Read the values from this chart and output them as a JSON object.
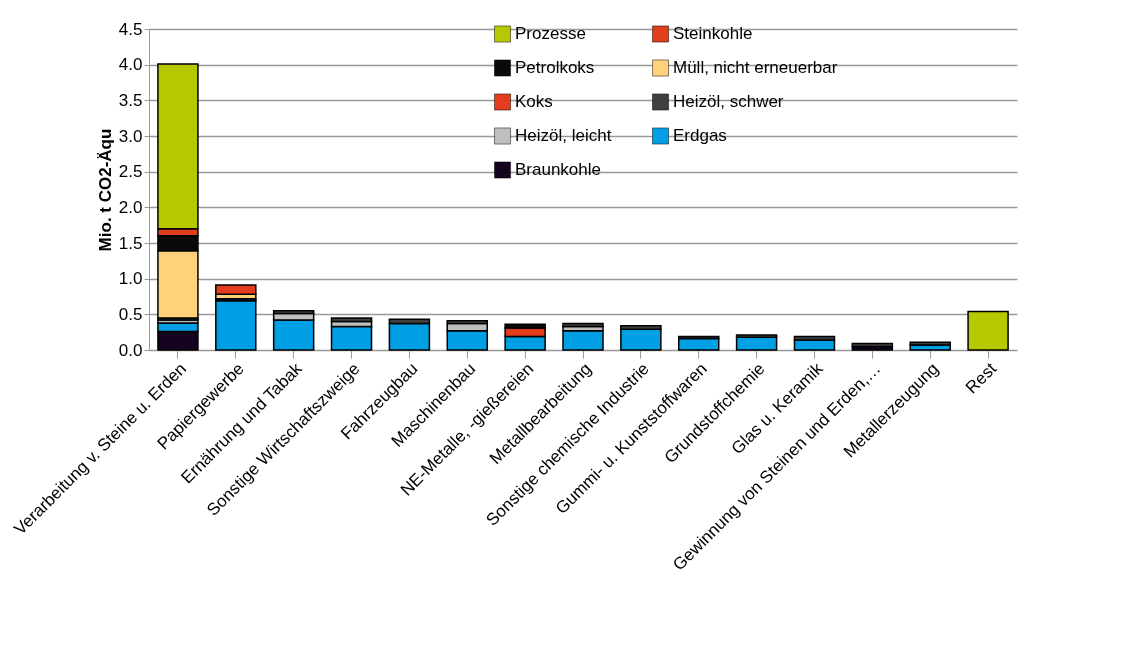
{
  "chart_data": {
    "type": "bar",
    "stacked": true,
    "ylabel": "Mio. t CO2-Äqu",
    "categories": [
      "Verarbeitung v. Steine u. Erden",
      "Papiergewerbe",
      "Ernährung und Tabak",
      "Sonstige Wirtschaftszweige",
      "Fahrzeugbau",
      "Maschinenbau",
      "NE-Metalle, -gießereien",
      "Metallbearbeitung",
      "Sonstige chemische Industrie",
      "Gummi- u. Kunststoffwaren",
      "Grundstoffchemie",
      "Glas u. Keramik",
      "Gewinnung von Steinen und Erden,…",
      "Metallerzeugung",
      "Rest"
    ],
    "series": [
      {
        "name": "Braunkohle",
        "color": "#150420",
        "values": [
          0.26,
          null,
          null,
          null,
          null,
          null,
          null,
          null,
          null,
          null,
          null,
          null,
          0.05,
          null,
          null
        ]
      },
      {
        "name": "Erdgas",
        "color": "#009fe3",
        "values": [
          0.12,
          0.69,
          0.42,
          0.33,
          0.37,
          0.27,
          0.19,
          0.27,
          0.29,
          0.16,
          0.18,
          0.14,
          null,
          0.07,
          null
        ]
      },
      {
        "name": "Heizöl, leicht",
        "color": "#bfbfbf",
        "values": [
          0.04,
          null,
          0.09,
          0.07,
          null,
          0.1,
          null,
          0.06,
          null,
          null,
          null,
          null,
          null,
          null,
          null
        ]
      },
      {
        "name": "Heizöl, schwer",
        "color": "#404040",
        "values": [
          0.03,
          0.03,
          0.04,
          0.05,
          0.06,
          0.04,
          null,
          0.04,
          0.05,
          0.03,
          0.03,
          0.05,
          0.04,
          0.04,
          null
        ]
      },
      {
        "name": "Koks",
        "color": "#e23d1c",
        "values": [
          null,
          null,
          null,
          null,
          null,
          null,
          0.12,
          null,
          null,
          null,
          null,
          null,
          null,
          null,
          null
        ]
      },
      {
        "name": "Müll, nicht erneuerbar",
        "color": "#fdd27a",
        "values": [
          0.94,
          0.06,
          null,
          null,
          null,
          null,
          null,
          null,
          null,
          null,
          null,
          null,
          null,
          null,
          null
        ]
      },
      {
        "name": "Petrolkoks",
        "color": "#0a0a0a",
        "values": [
          0.21,
          null,
          null,
          null,
          null,
          null,
          0.05,
          null,
          null,
          null,
          null,
          null,
          null,
          null,
          null
        ]
      },
      {
        "name": "Steinkohle",
        "color": "#e23d1c",
        "values": [
          0.1,
          0.13,
          null,
          null,
          null,
          null,
          null,
          null,
          null,
          null,
          null,
          null,
          null,
          null,
          null
        ]
      },
      {
        "name": "Prozesse",
        "color": "#b5c800",
        "values": [
          2.31,
          null,
          null,
          null,
          null,
          null,
          null,
          null,
          null,
          null,
          null,
          null,
          null,
          null,
          0.54
        ]
      }
    ],
    "ylim": [
      0,
      4.5
    ],
    "yticks": [
      {
        "value": 0,
        "label": "0.0"
      },
      {
        "value": 0.5,
        "label": "0.5"
      },
      {
        "value": 1,
        "label": "1.0"
      },
      {
        "value": 1.5,
        "label": "1.5"
      },
      {
        "value": 2,
        "label": "2.0"
      },
      {
        "value": 2.5,
        "label": "2.5"
      },
      {
        "value": 3,
        "label": "3.0"
      },
      {
        "value": 3.5,
        "label": "3.5"
      },
      {
        "value": 4,
        "label": "4.0"
      },
      {
        "value": 4.5,
        "label": "4.5"
      }
    ],
    "grid": "y",
    "legend": "top right"
  }
}
